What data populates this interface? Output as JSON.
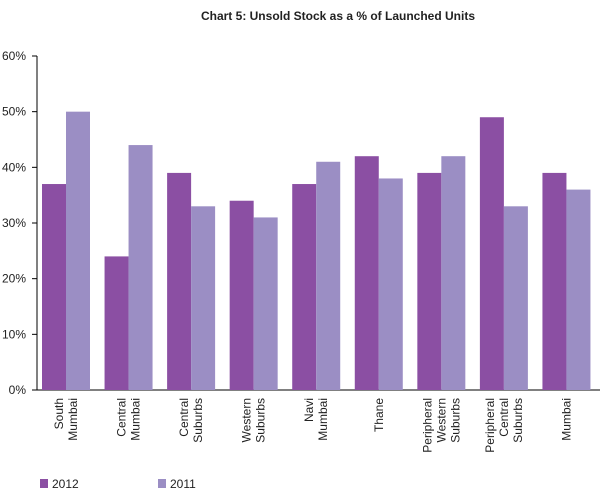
{
  "chart_data": {
    "type": "bar",
    "title": "Chart 5: Unsold Stock as a % of Launched Units",
    "xlabel": "",
    "ylabel": "",
    "ylim": [
      0,
      60
    ],
    "yticks": [
      0,
      10,
      20,
      30,
      40,
      50,
      60
    ],
    "ytick_suffix": "%",
    "grid": false,
    "legend_placement": "bottom-left",
    "categories": [
      [
        "South",
        "Mumbai"
      ],
      [
        "Central",
        "Mumbai"
      ],
      [
        "Central",
        "Suburbs"
      ],
      [
        "Western",
        "Suburbs"
      ],
      [
        "Navi",
        "Mumbai"
      ],
      [
        "Thane"
      ],
      [
        "Peripheral",
        "Western",
        "Suburbs"
      ],
      [
        "Peripheral",
        "Central",
        "Suburbs"
      ],
      [
        "Mumbai"
      ]
    ],
    "series": [
      {
        "name": "2012",
        "color": "#8b4fa3",
        "values": [
          37,
          24,
          39,
          34,
          37,
          42,
          39,
          49,
          39
        ]
      },
      {
        "name": "2011",
        "color": "#9b8ec4",
        "values": [
          50,
          44,
          33,
          31,
          41,
          38,
          42,
          33,
          36
        ]
      }
    ]
  }
}
